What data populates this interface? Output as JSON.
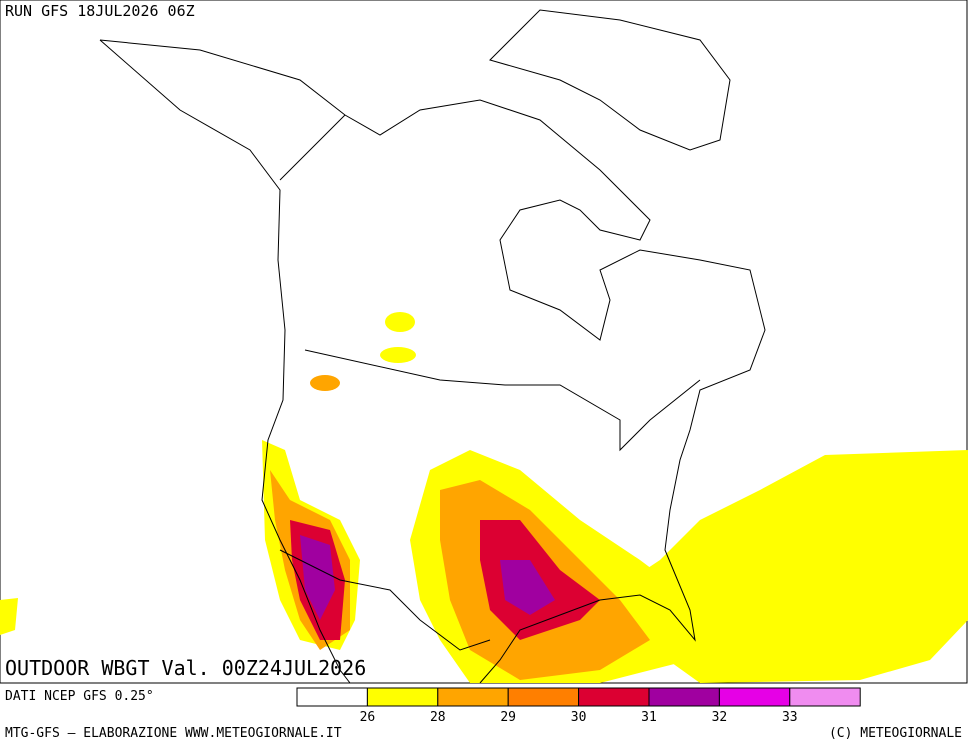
{
  "header": {
    "run": "RUN GFS 18JUL2026 06Z"
  },
  "map": {
    "title": "OUTDOOR WBGT Val. 00Z24JUL2026"
  },
  "footer": {
    "source": "DATI NCEP GFS 0.25°",
    "credit": "MTG-GFS — ELABORAZIONE WWW.METEOGIORNALE.IT",
    "copyright": "(C) METEOGIORNALE"
  },
  "legend": {
    "levels": [
      26,
      28,
      29,
      30,
      31,
      32,
      33
    ],
    "colors": [
      "#ffffff",
      "#ffff00",
      "#ffa500",
      "#ff7f00",
      "#dc0032",
      "#a000a0",
      "#e600e6",
      "#f08cf0"
    ]
  }
}
